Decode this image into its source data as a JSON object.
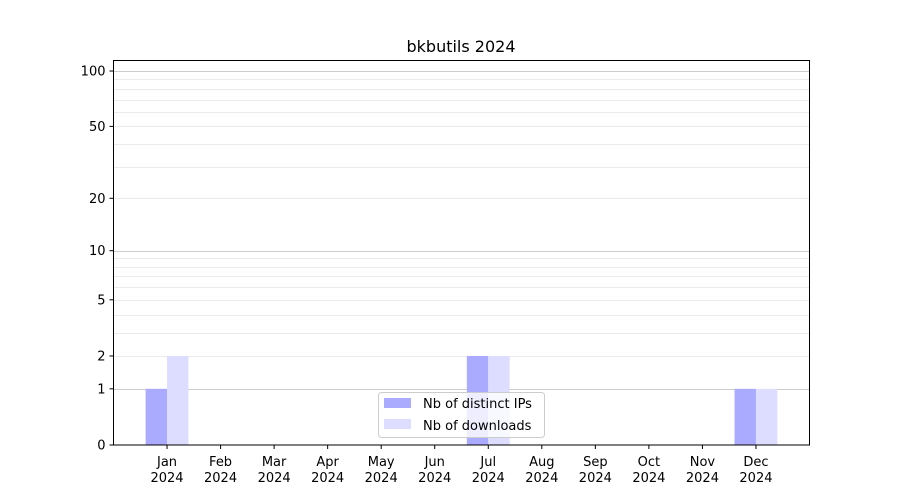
{
  "chart_data": {
    "type": "bar",
    "title": "bkbutils 2024",
    "xlabel": "",
    "ylabel": "",
    "categories": [
      "Jan\n2024",
      "Feb\n2024",
      "Mar\n2024",
      "Apr\n2024",
      "May\n2024",
      "Jun\n2024",
      "Jul\n2024",
      "Aug\n2024",
      "Sep\n2024",
      "Oct\n2024",
      "Nov\n2024",
      "Dec\n2024"
    ],
    "series": [
      {
        "name": "Nb of distinct IPs",
        "color": "#aaaaff",
        "values": [
          1,
          0,
          0,
          0,
          0,
          0,
          2,
          0,
          0,
          0,
          0,
          1
        ]
      },
      {
        "name": "Nb of downloads",
        "color": "#ddddff",
        "values": [
          2,
          0,
          0,
          0,
          0,
          0,
          2,
          0,
          0,
          0,
          0,
          1
        ]
      }
    ],
    "y_scale": "log(1+y)",
    "ylim": [
      0,
      114
    ],
    "yticks": [
      0,
      1,
      2,
      5,
      10,
      20,
      50,
      100
    ],
    "grid": true,
    "legend_position": "lower center"
  }
}
